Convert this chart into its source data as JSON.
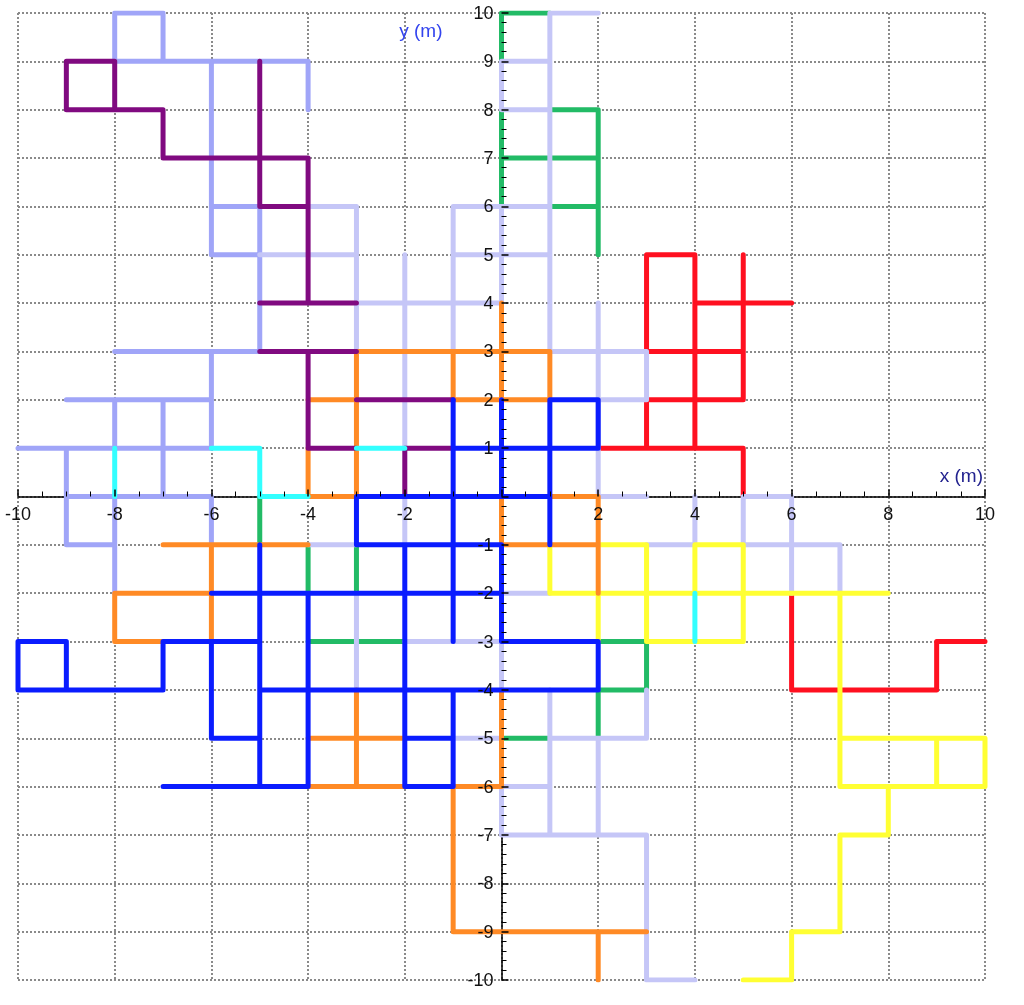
{
  "chart_data": {
    "type": "line",
    "xlabel": "x (m)",
    "ylabel": "y (m)",
    "xlim": [
      -10,
      10
    ],
    "ylim": [
      -10,
      10
    ],
    "xticks": [
      -10,
      -8,
      -6,
      -4,
      -2,
      {
        "value": 0,
        "label": null
      },
      2,
      4,
      6,
      8,
      10
    ],
    "yticks": [
      -10,
      -9,
      -8,
      -7,
      -6,
      -5,
      -4,
      -3,
      -2,
      -1,
      {
        "value": 0,
        "label": null
      },
      1,
      2,
      3,
      4,
      5,
      6,
      7,
      8,
      9,
      10
    ],
    "grid": true,
    "marker": "none",
    "line_style": "solid",
    "series": [
      {
        "color": "#22bb66",
        "x": [
          0,
          0,
          1,
          null,
          0,
          0,
          null,
          0,
          2,
          null,
          1,
          2,
          2,
          null,
          1,
          2,
          null,
          -5,
          -5,
          null,
          -4,
          -4,
          null,
          -4,
          -2,
          null,
          -3,
          -3,
          null,
          2,
          2,
          3,
          3,
          2,
          null,
          0,
          1
        ],
        "values": [
          9,
          10,
          10,
          null,
          6,
          8,
          null,
          7,
          7,
          null,
          8,
          8,
          5,
          null,
          6,
          6,
          null,
          0,
          -1,
          null,
          -1,
          -2,
          null,
          -3,
          -3,
          null,
          -1,
          -2,
          null,
          -5,
          -4,
          -4,
          -3,
          -3,
          null,
          -5,
          -5
        ]
      },
      {
        "color": "#ff1020",
        "x": [
          4,
          4,
          3,
          3,
          5,
          null,
          6,
          4,
          null,
          2,
          5,
          5,
          null,
          5,
          5,
          3,
          3,
          null,
          6,
          6,
          9,
          9,
          10
        ],
        "values": [
          1,
          5,
          5,
          3,
          3,
          null,
          4,
          4,
          null,
          1,
          1,
          0,
          null,
          5,
          2,
          2,
          1,
          null,
          -2,
          -4,
          -4,
          -3,
          -3
        ]
      },
      {
        "color": "#a0a5f8",
        "x": [
          -7,
          -7,
          -8,
          -8,
          -4,
          -4,
          null,
          -6,
          -6,
          -5,
          null,
          -6,
          -5,
          -5,
          -8,
          null,
          -6,
          -6,
          null,
          -9,
          -6,
          null,
          -8,
          -8,
          null,
          -7,
          -7,
          null,
          -10,
          -6,
          null,
          -9,
          -9,
          -8,
          null,
          -8,
          -8,
          -6,
          -6,
          null,
          -9,
          -8
        ],
        "values": [
          9,
          10,
          10,
          9,
          9,
          8,
          null,
          9,
          5,
          5,
          null,
          6,
          6,
          3,
          3,
          null,
          3,
          1,
          null,
          2,
          2,
          null,
          2,
          1,
          null,
          2,
          0,
          null,
          1,
          1,
          null,
          1,
          -1,
          -1,
          null,
          -2,
          0,
          0,
          -1,
          null,
          0,
          0
        ]
      },
      {
        "color": "#c5c6f7",
        "x": [
          2,
          1,
          1,
          3,
          3,
          2,
          null,
          1,
          0,
          0,
          1,
          null,
          -1,
          -1,
          1,
          null,
          -1,
          1,
          null,
          0,
          0,
          -2,
          -2,
          null,
          -5,
          -3,
          null,
          -4,
          -3,
          -3,
          null,
          -2,
          -2,
          -3,
          null,
          2,
          2,
          3,
          null,
          -2,
          -2,
          null,
          -4,
          -3,
          null,
          -3,
          -3,
          null,
          -2,
          0,
          0,
          null,
          0,
          1,
          null,
          1,
          1,
          null,
          -1,
          0,
          null,
          1,
          3,
          3,
          null,
          1,
          0,
          0,
          3,
          3,
          4,
          null,
          2,
          2,
          null,
          3,
          4,
          4,
          null,
          5,
          5,
          6,
          6,
          null,
          5,
          7,
          7
        ],
        "values": [
          10,
          10,
          3,
          3,
          2,
          2,
          null,
          9,
          9,
          8,
          8,
          null,
          3,
          6,
          6,
          null,
          5,
          5,
          null,
          6,
          4,
          4,
          1,
          null,
          5,
          5,
          null,
          6,
          6,
          3,
          null,
          5,
          4,
          4,
          null,
          4,
          0,
          0,
          null,
          0,
          -1,
          null,
          -1,
          -1,
          null,
          -2,
          -4,
          null,
          -3,
          -3,
          -4,
          null,
          -2,
          -2,
          null,
          -4,
          -7,
          null,
          -5,
          -5,
          null,
          -5,
          -5,
          -4,
          null,
          -6,
          -6,
          -7,
          -7,
          -10,
          -10,
          null,
          -5,
          -7,
          null,
          -1,
          -1,
          0,
          null,
          -1,
          0,
          0,
          -2,
          null,
          -1,
          -1,
          -2
        ]
      },
      {
        "color": "#ffff33",
        "x": [
          2,
          3,
          3,
          5,
          5,
          4,
          4,
          null,
          1,
          1,
          8,
          null,
          2,
          2,
          null,
          7,
          7,
          10,
          10,
          7,
          null,
          9,
          9,
          null,
          8,
          8,
          7,
          7,
          6,
          6,
          5
        ],
        "values": [
          -1,
          -1,
          -3,
          -3,
          -1,
          -1,
          -2,
          null,
          -1,
          -2,
          -2,
          null,
          -2,
          -3,
          null,
          -2,
          -6,
          -6,
          -5,
          -5,
          null,
          -5,
          -6,
          null,
          -6,
          -7,
          -7,
          -9,
          -9,
          -10,
          -10
        ]
      },
      {
        "color": "#ff8a25",
        "x": [
          0,
          0,
          null,
          -3,
          -3,
          1,
          1,
          null,
          -1,
          -1,
          1,
          null,
          -4,
          -3,
          null,
          -4,
          -4,
          -3,
          null,
          1,
          2,
          2,
          null,
          0,
          0,
          2,
          null,
          -7,
          -4,
          null,
          -6,
          -6,
          null,
          -6,
          -8,
          -8,
          -7,
          null,
          -4,
          -2,
          null,
          -3,
          -3,
          -4,
          -2,
          null,
          0,
          0,
          -1,
          -1,
          3,
          null,
          2,
          2
        ],
        "values": [
          4,
          2,
          null,
          0,
          3,
          3,
          2,
          null,
          3,
          2,
          2,
          null,
          2,
          2,
          null,
          1,
          0,
          0,
          null,
          0,
          0,
          -2,
          null,
          0,
          -1,
          -1,
          null,
          -1,
          -1,
          null,
          -1,
          -3,
          null,
          -2,
          -2,
          -3,
          -3,
          null,
          -5,
          -5,
          null,
          -4,
          -6,
          -6,
          -6,
          null,
          -4,
          -6,
          -6,
          -9,
          -9,
          null,
          -9,
          -10
        ]
      },
      {
        "color": "#800a80",
        "x": [
          -8,
          -8,
          -9,
          -9,
          -7,
          -7,
          -4,
          -4,
          -3,
          null,
          -5,
          -5,
          -4,
          null,
          -5,
          -4,
          null,
          -5,
          -3,
          null,
          -4,
          -4,
          -3,
          null,
          -3,
          -1,
          null,
          -2,
          -2,
          -1
        ],
        "values": [
          8,
          9,
          9,
          8,
          8,
          7,
          7,
          4,
          4,
          null,
          9,
          6,
          6,
          null,
          4,
          4,
          null,
          3,
          3,
          null,
          3,
          1,
          1,
          null,
          2,
          2,
          null,
          0,
          1,
          1
        ]
      },
      {
        "color": "#0a1cff",
        "x": [
          -3,
          -3,
          1,
          1,
          2,
          2,
          -1,
          null,
          -1,
          -1,
          null,
          0,
          0,
          null,
          1,
          1,
          null,
          -3,
          0,
          0,
          2,
          2,
          -5,
          null,
          -2,
          -2,
          -1,
          -1,
          null,
          -2,
          -1,
          null,
          -6,
          0,
          null,
          -5,
          -5,
          null,
          -4,
          -4,
          null,
          -7,
          -4,
          null,
          -5,
          -7,
          -7,
          -10,
          -10,
          -9,
          -9,
          null,
          -6,
          -6,
          -5
        ],
        "values": [
          -1,
          0,
          0,
          2,
          2,
          1,
          1,
          null,
          2,
          -3,
          null,
          2,
          0,
          null,
          0,
          -1,
          null,
          -1,
          -1,
          -3,
          -3,
          -4,
          -4,
          null,
          -1,
          -6,
          -6,
          -4,
          null,
          -5,
          -5,
          null,
          -2,
          -2,
          null,
          -1,
          -6,
          null,
          -2,
          -6,
          null,
          -6,
          -6,
          null,
          -3,
          -3,
          -4,
          -4,
          -3,
          -3,
          -4,
          null,
          -3,
          -5,
          -5
        ]
      },
      {
        "color": "#33ffff",
        "x": [
          -6,
          -5,
          -5,
          -4,
          null,
          -8,
          -8,
          null,
          -3,
          -2,
          null,
          4,
          4
        ],
        "values": [
          1,
          1,
          0,
          0,
          null,
          1,
          0,
          null,
          1,
          1,
          null,
          -2,
          -3
        ]
      }
    ]
  }
}
